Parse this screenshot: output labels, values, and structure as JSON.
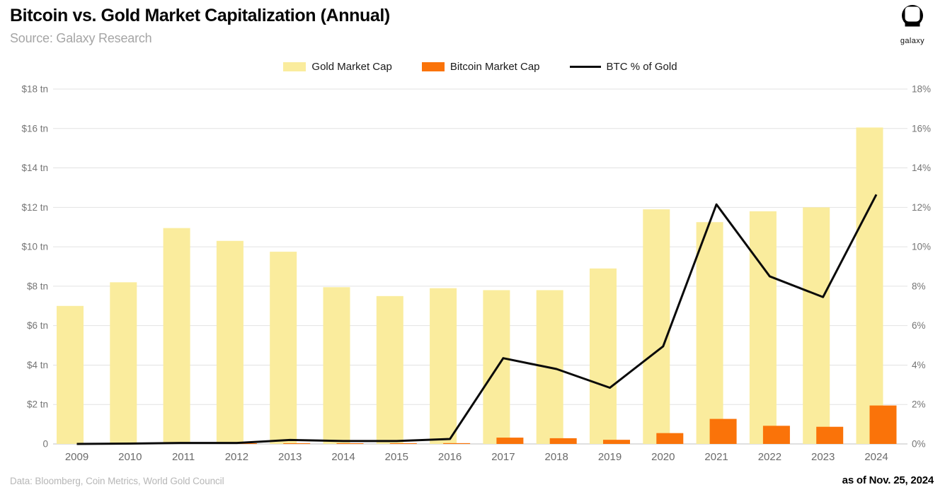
{
  "header": {
    "title": "Bitcoin vs. Gold Market Capitalization (Annual)",
    "subtitle": "Source: Galaxy Research",
    "logo_text": "galaxy"
  },
  "footer": {
    "left": "Data: Bloomberg, Coin Metrics, World Gold Council",
    "right": "as of Nov. 25, 2024"
  },
  "colors": {
    "gold_bar": "#FAEC9D",
    "bitcoin_bar": "#FA7309",
    "line": "#0a0a0a",
    "gridline": "#e2e2e2",
    "baseline": "#c0c0c0",
    "axis_text": "#757575",
    "x_label_text": "#6b6b6b"
  },
  "chart_data": {
    "type": "bar",
    "title": "Bitcoin vs. Gold Market Capitalization (Annual)",
    "categories": [
      "2009",
      "2010",
      "2011",
      "2012",
      "2013",
      "2014",
      "2015",
      "2016",
      "2017",
      "2018",
      "2019",
      "2020",
      "2021",
      "2022",
      "2023",
      "2024"
    ],
    "series": [
      {
        "name": "Gold Market Cap",
        "type": "bar",
        "axis": "left",
        "unit": "$ tn",
        "color": "#FAEC9D",
        "values": [
          7.0,
          8.2,
          10.95,
          10.3,
          9.75,
          7.95,
          7.5,
          7.9,
          7.8,
          7.8,
          8.9,
          11.9,
          11.25,
          11.8,
          12.0,
          16.05
        ]
      },
      {
        "name": "Bitcoin Market Cap",
        "type": "bar",
        "axis": "left",
        "unit": "$ tn",
        "color": "#FA7309",
        "values": [
          0,
          0,
          0,
          0.01,
          0.02,
          0.03,
          0.03,
          0.04,
          0.32,
          0.29,
          0.21,
          0.55,
          1.27,
          0.92,
          0.87,
          1.95
        ]
      },
      {
        "name": "BTC % of Gold",
        "type": "line",
        "axis": "right",
        "unit": "%",
        "color": "#0a0a0a",
        "values": [
          0,
          0.02,
          0.05,
          0.05,
          0.2,
          0.15,
          0.15,
          0.25,
          4.35,
          3.8,
          2.85,
          4.95,
          12.15,
          8.5,
          7.45,
          12.65
        ]
      }
    ],
    "left_axis": {
      "min": 0,
      "max": 18,
      "tick_labels_top_to_bottom": [
        "$18 tn",
        "$16 tn",
        "$14 tn",
        "$12 tn",
        "$10 tn",
        "$8 tn",
        "$6 tn",
        "$4 tn",
        "$2 tn",
        "0"
      ]
    },
    "right_axis": {
      "min": 0,
      "max": 18,
      "tick_labels_top_to_bottom": [
        "18%",
        "16%",
        "14%",
        "12%",
        "10%",
        "8%",
        "6%",
        "4%",
        "2%",
        "0%"
      ]
    },
    "grid": true,
    "legend_position": "top-center"
  }
}
